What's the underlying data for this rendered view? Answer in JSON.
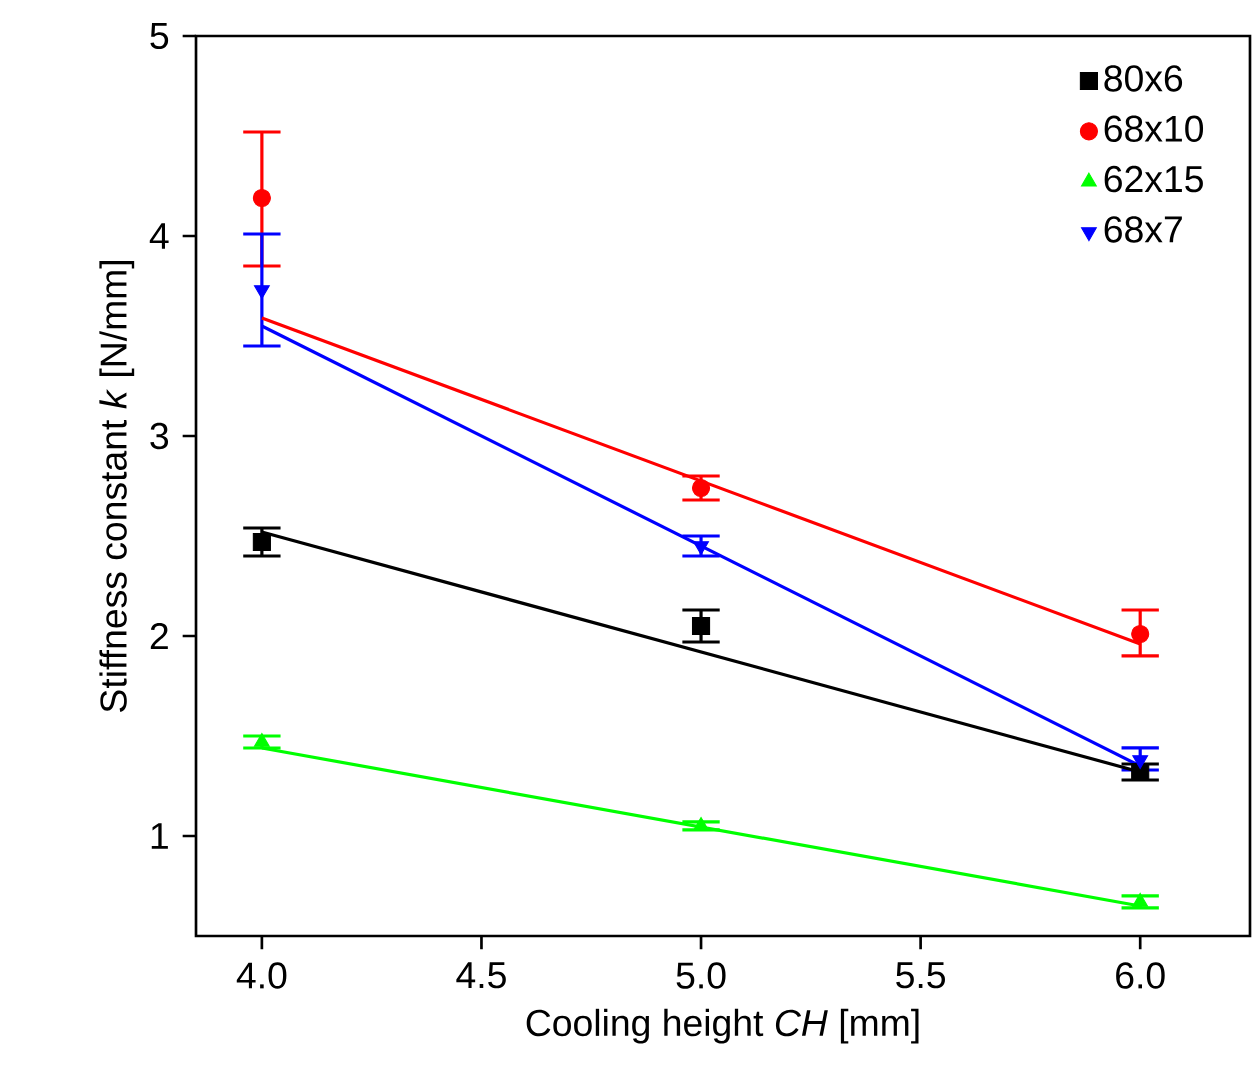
{
  "chart_data": {
    "type": "scatter",
    "xlabel": "Cooling height *CH* [mm]",
    "ylabel": "Stiffness constant *k* [N/mm]",
    "xlim": [
      3.85,
      6.25
    ],
    "ylim": [
      0.5,
      5
    ],
    "xticks": [
      {
        "value": 4,
        "label": "4.0"
      },
      {
        "value": 4.5,
        "label": "4.5"
      },
      {
        "value": 5,
        "label": "5.0"
      },
      {
        "value": 5.5,
        "label": "5.5"
      },
      {
        "value": 6,
        "label": "6.0"
      }
    ],
    "yticks": [
      1,
      2,
      3,
      4,
      5
    ],
    "grid": false,
    "legend": "top right",
    "series": [
      {
        "name": "80x6",
        "color": "#000000",
        "marker": "square",
        "x": [
          4,
          5,
          6
        ],
        "values": [
          2.47,
          2.05,
          1.32
        ],
        "errors": [
          [
            2.4,
            2.54
          ],
          [
            1.97,
            2.13
          ],
          [
            1.28,
            1.36
          ]
        ]
      },
      {
        "name": "68x10",
        "color": "#ff0000",
        "marker": "circle",
        "x": [
          4,
          5,
          6
        ],
        "values": [
          4.19,
          2.74,
          2.01
        ],
        "errors": [
          [
            3.85,
            4.52
          ],
          [
            2.68,
            2.8
          ],
          [
            1.9,
            2.13
          ]
        ]
      },
      {
        "name": "62x15",
        "color": "#00ff00",
        "marker": "triangle",
        "x": [
          4,
          5,
          6
        ],
        "values": [
          1.47,
          1.05,
          0.67
        ],
        "errors": [
          [
            1.44,
            1.5
          ],
          [
            1.03,
            1.07
          ],
          [
            0.64,
            0.7
          ]
        ]
      },
      {
        "name": "68x7",
        "color": "#0000ff",
        "marker": "triangle-down",
        "x": [
          4,
          5,
          6
        ],
        "values": [
          3.73,
          2.45,
          1.38
        ],
        "errors": [
          [
            3.45,
            4.01
          ],
          [
            2.4,
            2.5
          ],
          [
            1.33,
            1.44
          ]
        ]
      },
      {
        "type": "line",
        "color": "#000000",
        "marker": "none",
        "x": [
          4,
          6
        ],
        "values": [
          2.52,
          1.32
        ]
      },
      {
        "type": "line",
        "color": "#ff0000",
        "marker": "none",
        "x": [
          4,
          6
        ],
        "values": [
          3.59,
          1.96
        ]
      },
      {
        "type": "line",
        "color": "#00ff00",
        "marker": "none",
        "x": [
          4,
          6
        ],
        "values": [
          1.44,
          0.65
        ]
      },
      {
        "type": "line",
        "color": "#0000ff",
        "marker": "none",
        "x": [
          4,
          6
        ],
        "values": [
          3.55,
          1.35
        ]
      }
    ]
  }
}
